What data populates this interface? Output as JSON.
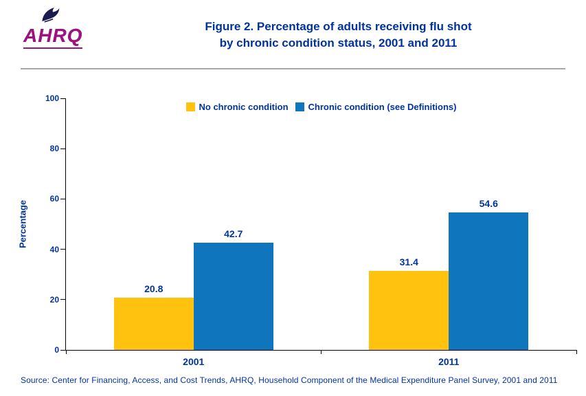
{
  "header": {
    "logo_text": "AHRQ",
    "title_line1": "Figure 2. Percentage of adults receiving flu shot",
    "title_line2": "by chronic condition status, 2001 and 2011"
  },
  "chart_data": {
    "type": "bar",
    "categories": [
      "2001",
      "2011"
    ],
    "series": [
      {
        "name": "No chronic condition",
        "color": "#FFC20E",
        "values": [
          20.8,
          31.4
        ]
      },
      {
        "name": "Chronic condition (see Definitions)",
        "color": "#0F75BC",
        "values": [
          42.7,
          54.6
        ]
      }
    ],
    "title": "Figure 2. Percentage of adults receiving flu shot by chronic condition status, 2001 and 2011",
    "xlabel": "",
    "ylabel": "Percentage",
    "ylim": [
      0,
      100
    ],
    "yticks": [
      0,
      20,
      40,
      60,
      80,
      100
    ],
    "legend_position": "top-center",
    "grid": false
  },
  "footer": {
    "source": "Source: Center for Financing, Access, and Cost Trends, AHRQ, Household Component of the Medical Expenditure Panel Survey, 2001 and 2011"
  },
  "colors": {
    "text_blue": "#0033A0",
    "bar_yellow": "#FFC20E",
    "bar_blue": "#0F75BC",
    "logo_purple": "#9B1380",
    "divider_gray": "#A8A8A8",
    "axis_black": "#000000"
  }
}
